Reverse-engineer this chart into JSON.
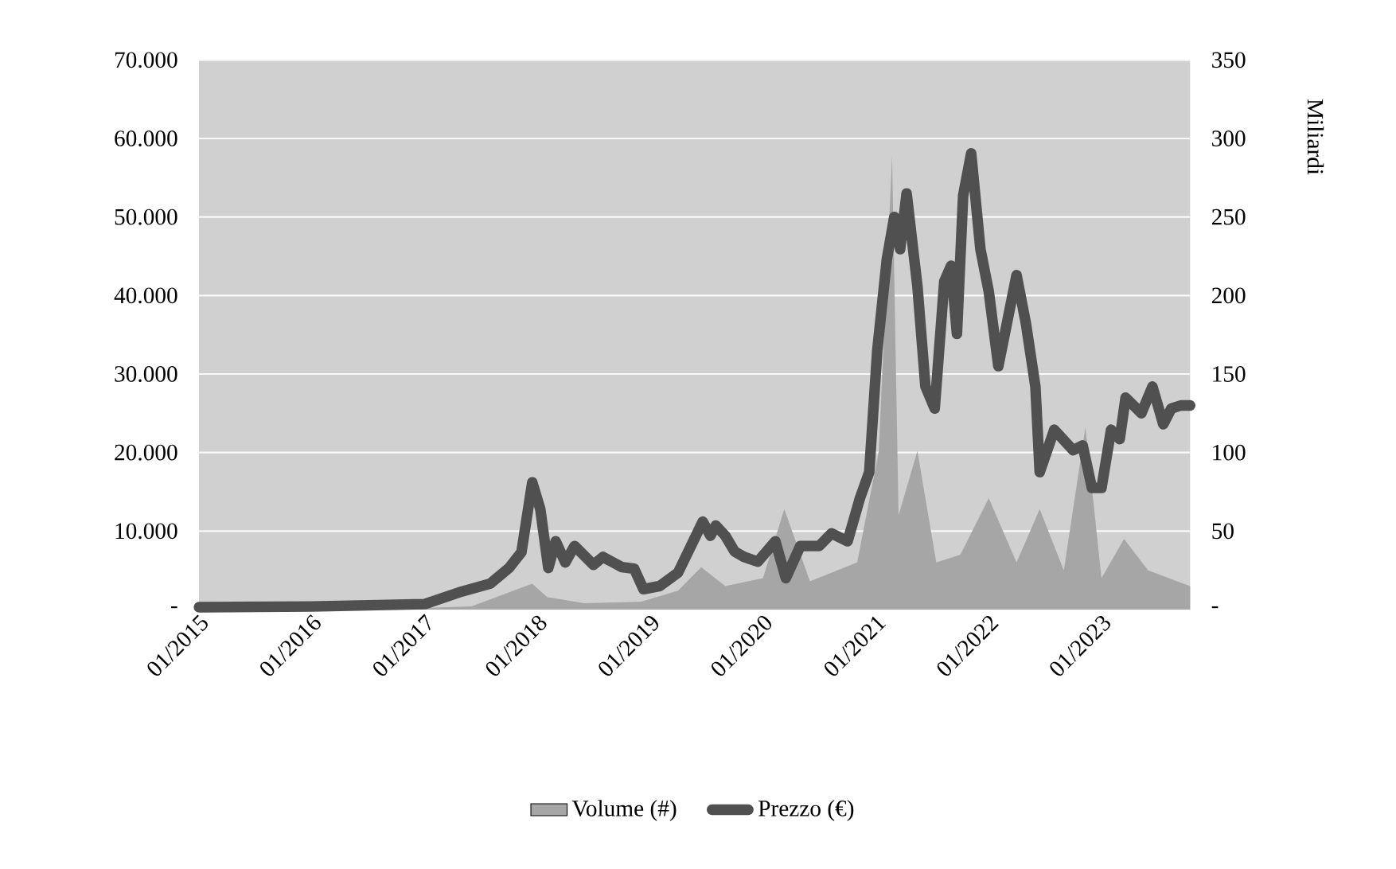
{
  "chart_data": {
    "type": "line",
    "y2label": "Miliardi",
    "xlim": [
      "2015-01-01",
      "2023-10-15"
    ],
    "xticks": [
      {
        "value": "2015-01-01",
        "label": "01/2015"
      },
      {
        "value": "2016-01-01",
        "label": "01/2016"
      },
      {
        "value": "2017-01-01",
        "label": "01/2017"
      },
      {
        "value": "2018-01-01",
        "label": "01/2018"
      },
      {
        "value": "2019-01-01",
        "label": "01/2019"
      },
      {
        "value": "2020-01-01",
        "label": "01/2020"
      },
      {
        "value": "2021-01-01",
        "label": "01/2021"
      },
      {
        "value": "2022-01-01",
        "label": "01/2022"
      },
      {
        "value": "2023-01-01",
        "label": "01/2023"
      }
    ],
    "ylim": [
      0,
      70000
    ],
    "yticks": [
      {
        "value": 0,
        "label": "-"
      },
      {
        "value": 10000,
        "label": "10.000"
      },
      {
        "value": 20000,
        "label": "20.000"
      },
      {
        "value": 30000,
        "label": "30.000"
      },
      {
        "value": 40000,
        "label": "40.000"
      },
      {
        "value": 50000,
        "label": "50.000"
      },
      {
        "value": 60000,
        "label": "60.000"
      },
      {
        "value": 70000,
        "label": "70.000"
      }
    ],
    "y2lim": [
      0,
      350
    ],
    "y2ticks": [
      {
        "value": 0,
        "label": "-"
      },
      50,
      100,
      150,
      200,
      250,
      300,
      350
    ],
    "grid": "y",
    "legend": "bottom",
    "series": [
      {
        "name": "Volume (#)",
        "type": "area",
        "axis": "y2",
        "color": "#a6a6a6",
        "x": [
          "2015-01-01",
          "2016-01-01",
          "2017-01-01",
          "2017-06-01",
          "2017-12-15",
          "2018-02-01",
          "2018-06-01",
          "2018-12-01",
          "2019-04-01",
          "2019-06-15",
          "2019-09-01",
          "2020-01-01",
          "2020-03-10",
          "2020-06-01",
          "2020-11-01",
          "2021-01-10",
          "2021-02-22",
          "2021-03-15",
          "2021-05-15",
          "2021-07-15",
          "2021-10-01",
          "2022-01-01",
          "2022-04-01",
          "2022-06-15",
          "2022-09-01",
          "2022-11-10",
          "2023-01-01",
          "2023-03-15",
          "2023-06-01",
          "2023-10-15"
        ],
        "values": [
          0,
          0,
          1,
          2,
          16.5,
          8,
          4,
          5,
          12,
          27,
          15,
          20,
          64,
          18,
          30,
          101,
          289,
          60,
          101,
          30,
          35,
          71,
          30,
          64,
          25,
          116,
          20,
          45,
          25,
          15
        ]
      },
      {
        "name": "Prezzo (€)",
        "color": "#505050",
        "x": [
          "2015-01-01",
          "2016-01-01",
          "2017-01-01",
          "2017-05-01",
          "2017-08-01",
          "2017-10-01",
          "2017-11-10",
          "2017-12-15",
          "2018-01-10",
          "2018-02-05",
          "2018-03-01",
          "2018-04-01",
          "2018-05-01",
          "2018-07-01",
          "2018-08-01",
          "2018-10-01",
          "2018-11-10",
          "2018-12-10",
          "2019-02-01",
          "2019-04-01",
          "2019-06-20",
          "2019-07-15",
          "2019-08-01",
          "2019-09-01",
          "2019-10-01",
          "2019-11-01",
          "2019-12-15",
          "2020-02-10",
          "2020-03-15",
          "2020-05-01",
          "2020-07-01",
          "2020-08-10",
          "2020-10-01",
          "2020-11-10",
          "2020-12-10",
          "2021-01-05",
          "2021-02-05",
          "2021-03-01",
          "2021-03-20",
          "2021-04-10",
          "2021-05-15",
          "2021-06-10",
          "2021-07-10",
          "2021-08-10",
          "2021-09-01",
          "2021-09-20",
          "2021-10-10",
          "2021-11-05",
          "2021-12-05",
          "2022-01-01",
          "2022-02-01",
          "2022-03-01",
          "2022-04-01",
          "2022-05-01",
          "2022-06-01",
          "2022-06-15",
          "2022-08-01",
          "2022-10-01",
          "2022-11-01",
          "2022-12-01",
          "2023-01-01",
          "2023-02-01",
          "2023-03-01",
          "2023-03-20",
          "2023-05-10",
          "2023-06-15",
          "2023-07-20",
          "2023-08-15",
          "2023-09-15",
          "2023-10-15"
        ],
        "values": [
          300,
          400,
          700,
          2300,
          3300,
          5300,
          7300,
          16200,
          12800,
          5300,
          8700,
          6000,
          8100,
          5700,
          6700,
          5400,
          5200,
          2600,
          3000,
          4700,
          11200,
          9400,
          10700,
          9400,
          7400,
          6700,
          6100,
          8700,
          4000,
          8100,
          8100,
          9700,
          8700,
          14200,
          17500,
          33000,
          44600,
          50000,
          45900,
          53000,
          41200,
          28400,
          25600,
          41800,
          43800,
          35100,
          52700,
          58100,
          45900,
          40500,
          31000,
          36500,
          42600,
          36500,
          28400,
          17500,
          22900,
          20300,
          20900,
          15500,
          15500,
          22900,
          21700,
          27000,
          25000,
          28400,
          23600,
          25600,
          26000,
          26000
        ]
      }
    ]
  }
}
